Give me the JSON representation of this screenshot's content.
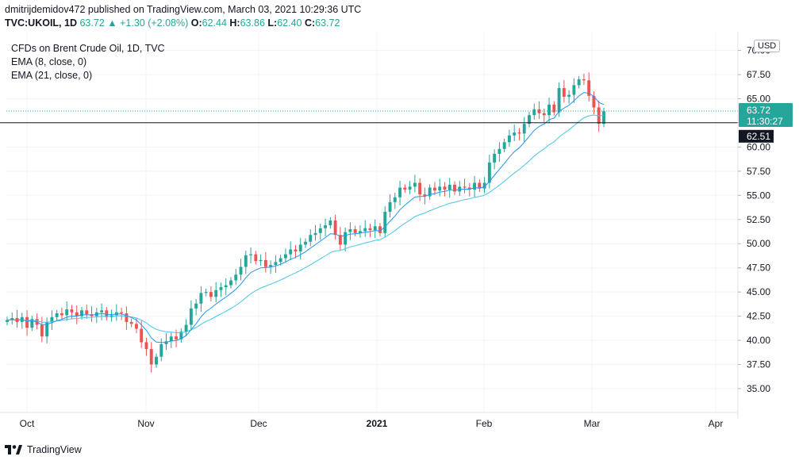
{
  "header": {
    "published": "dmitrijdemidov472 published on TradingView.com, March 03, 2021 10:29:36 UTC",
    "symbol": "TVC:UKOIL, 1D",
    "last": "63.72",
    "change_arrow": "▲",
    "change": "+1.30 (+2.08%)",
    "o_label": "O:",
    "o_value": "62.44",
    "h_label": "H:",
    "h_value": "63.86",
    "l_label": "L:",
    "l_value": "62.40",
    "c_label": "C:",
    "c_value": "63.72"
  },
  "legend": {
    "title": "CFDs on Brent Crude Oil, 1D, TVC",
    "ema1": "EMA (8, close, 0)",
    "ema2": "EMA (21, close, 0)"
  },
  "currency": "USD",
  "price_labels": {
    "last": "63.72",
    "countdown": "11:30:27",
    "crosshair": "62.51"
  },
  "footer": {
    "brand": "TradingView"
  },
  "colors": {
    "up": "#26a69a",
    "down": "#ef5350",
    "ema_fast": "#2196f3",
    "ema_slow": "#45c6e6",
    "crosshair_label": "#131722"
  },
  "chart_data": {
    "type": "candlestick",
    "y_ticks": [
      "35.00",
      "37.50",
      "40.00",
      "42.50",
      "45.00",
      "47.50",
      "50.00",
      "52.50",
      "55.00",
      "57.50",
      "60.00",
      "62.50",
      "65.00",
      "67.50",
      "70.00"
    ],
    "x_ticks": [
      "Oct",
      "Nov",
      "Dec",
      "2021",
      "Feb",
      "Mar",
      "Apr"
    ],
    "ylim": [
      32.5,
      71.5
    ],
    "last_price": 63.72,
    "crosshair_price": 62.51,
    "closes": [
      42.1,
      42.3,
      41.9,
      42.4,
      41.3,
      42.2,
      41.6,
      40.4,
      41.9,
      42.4,
      42.8,
      42.6,
      43.2,
      42.9,
      42.5,
      43.1,
      42.7,
      42.5,
      42.9,
      43.1,
      42.4,
      42.6,
      42.9,
      42.8,
      41.9,
      41.7,
      41.2,
      39.8,
      39.1,
      37.5,
      38.3,
      39.6,
      39.9,
      40.4,
      40.1,
      40.9,
      41.6,
      43.3,
      43.8,
      44.9,
      45.0,
      44.5,
      45.2,
      45.5,
      45.7,
      46.2,
      46.8,
      47.6,
      48.8,
      48.9,
      48.2,
      48.3,
      47.6,
      47.8,
      48.1,
      48.5,
      48.9,
      49.4,
      49.2,
      49.9,
      50.2,
      50.9,
      51.1,
      51.6,
      51.9,
      52.4,
      50.9,
      49.9,
      51.2,
      51.5,
      51.1,
      51.3,
      51.6,
      51.4,
      51.8,
      51.1,
      53.3,
      54.3,
      54.8,
      55.8,
      55.6,
      55.9,
      56.3,
      55.1,
      54.9,
      55.8,
      55.5,
      55.9,
      55.6,
      56.1,
      55.4,
      55.9,
      55.8,
      55.6,
      56.3,
      55.7,
      56.3,
      58.4,
      59.3,
      59.8,
      60.5,
      61.2,
      61.5,
      61.4,
      62.4,
      63.3,
      63.9,
      63.5,
      63.3,
      64.4,
      63.6,
      66.1,
      65.2,
      65.4,
      66.4,
      67.0,
      66.9,
      65.3,
      64.1,
      62.4,
      63.7
    ]
  }
}
